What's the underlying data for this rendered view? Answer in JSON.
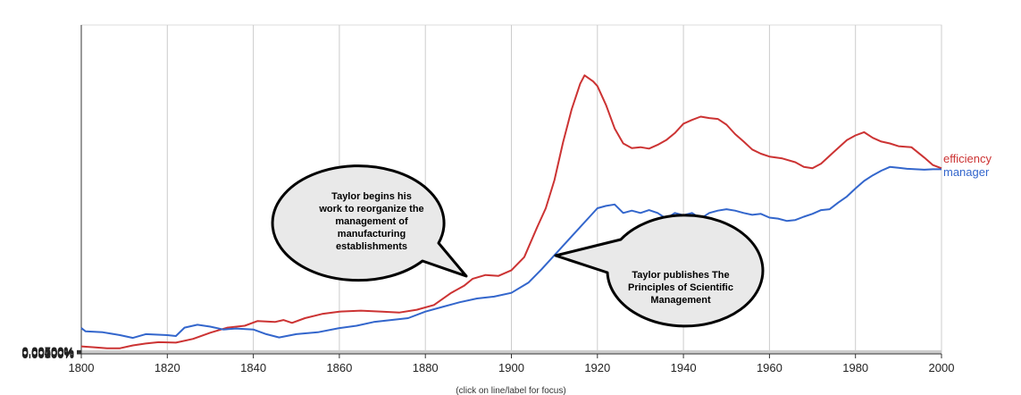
{
  "chart_data": {
    "type": "line",
    "title": "",
    "xlabel": "",
    "ylabel": "",
    "xlim": [
      1800,
      2000
    ],
    "ylim": [
      0,
      0.007
    ],
    "grid": true,
    "legend": "right-end labels",
    "x_ticks": [
      "1800",
      "1820",
      "1840",
      "1860",
      "1880",
      "1900",
      "1920",
      "1940",
      "1960",
      "1980",
      "2000"
    ],
    "y_ticks": [
      "0.00000%",
      "0.00100%",
      "0.00200%",
      "0.00300%",
      "0.00400%",
      "0.00500%",
      "0.00600%",
      "0.00700%"
    ],
    "series": [
      {
        "name": "efficiency",
        "color": "#cc3333",
        "points": [
          [
            1800,
            0.00016
          ],
          [
            1803,
            0.00014
          ],
          [
            1806,
            0.00012
          ],
          [
            1809,
            0.00012
          ],
          [
            1812,
            0.00018
          ],
          [
            1815,
            0.00022
          ],
          [
            1818,
            0.00025
          ],
          [
            1822,
            0.00024
          ],
          [
            1826,
            0.00032
          ],
          [
            1830,
            0.00045
          ],
          [
            1834,
            0.00056
          ],
          [
            1838,
            0.0006
          ],
          [
            1841,
            0.0007
          ],
          [
            1845,
            0.00068
          ],
          [
            1847,
            0.00072
          ],
          [
            1849,
            0.00066
          ],
          [
            1852,
            0.00076
          ],
          [
            1856,
            0.00085
          ],
          [
            1860,
            0.0009
          ],
          [
            1865,
            0.00092
          ],
          [
            1870,
            0.0009
          ],
          [
            1874,
            0.00088
          ],
          [
            1878,
            0.00094
          ],
          [
            1882,
            0.00104
          ],
          [
            1886,
            0.0013
          ],
          [
            1889,
            0.00145
          ],
          [
            1891,
            0.0016
          ],
          [
            1894,
            0.00168
          ],
          [
            1897,
            0.00166
          ],
          [
            1900,
            0.00178
          ],
          [
            1903,
            0.00206
          ],
          [
            1906,
            0.0027
          ],
          [
            1908,
            0.0031
          ],
          [
            1910,
            0.0037
          ],
          [
            1912,
            0.0045
          ],
          [
            1914,
            0.0052
          ],
          [
            1916,
            0.00575
          ],
          [
            1917,
            0.00593
          ],
          [
            1919,
            0.0058
          ],
          [
            1920,
            0.0057
          ],
          [
            1922,
            0.0053
          ],
          [
            1924,
            0.0048
          ],
          [
            1926,
            0.00448
          ],
          [
            1928,
            0.00438
          ],
          [
            1930,
            0.0044
          ],
          [
            1932,
            0.00437
          ],
          [
            1934,
            0.00445
          ],
          [
            1936,
            0.00455
          ],
          [
            1938,
            0.0047
          ],
          [
            1940,
            0.0049
          ],
          [
            1942,
            0.00498
          ],
          [
            1944,
            0.00505
          ],
          [
            1946,
            0.00502
          ],
          [
            1948,
            0.005
          ],
          [
            1950,
            0.00488
          ],
          [
            1952,
            0.00468
          ],
          [
            1954,
            0.00452
          ],
          [
            1956,
            0.00435
          ],
          [
            1958,
            0.00426
          ],
          [
            1960,
            0.0042
          ],
          [
            1963,
            0.00416
          ],
          [
            1966,
            0.00408
          ],
          [
            1968,
            0.00398
          ],
          [
            1970,
            0.00395
          ],
          [
            1972,
            0.00405
          ],
          [
            1975,
            0.0043
          ],
          [
            1978,
            0.00455
          ],
          [
            1980,
            0.00465
          ],
          [
            1982,
            0.00472
          ],
          [
            1984,
            0.0046
          ],
          [
            1986,
            0.00452
          ],
          [
            1988,
            0.00448
          ],
          [
            1990,
            0.00442
          ],
          [
            1993,
            0.0044
          ],
          [
            1996,
            0.00418
          ],
          [
            1998,
            0.00402
          ],
          [
            2000,
            0.00395
          ]
        ]
      },
      {
        "name": "manager",
        "color": "#3366cc",
        "points": [
          [
            1800,
            0.00055
          ],
          [
            1801,
            0.00048
          ],
          [
            1805,
            0.00046
          ],
          [
            1809,
            0.0004
          ],
          [
            1812,
            0.00034
          ],
          [
            1815,
            0.00042
          ],
          [
            1820,
            0.0004
          ],
          [
            1822,
            0.00038
          ],
          [
            1824,
            0.00056
          ],
          [
            1827,
            0.00062
          ],
          [
            1830,
            0.00058
          ],
          [
            1833,
            0.00052
          ],
          [
            1836,
            0.00054
          ],
          [
            1840,
            0.00052
          ],
          [
            1843,
            0.00042
          ],
          [
            1846,
            0.00035
          ],
          [
            1850,
            0.00042
          ],
          [
            1855,
            0.00046
          ],
          [
            1860,
            0.00055
          ],
          [
            1864,
            0.0006
          ],
          [
            1868,
            0.00068
          ],
          [
            1872,
            0.00072
          ],
          [
            1876,
            0.00076
          ],
          [
            1880,
            0.0009
          ],
          [
            1884,
            0.001
          ],
          [
            1888,
            0.0011
          ],
          [
            1892,
            0.00118
          ],
          [
            1896,
            0.00122
          ],
          [
            1900,
            0.0013
          ],
          [
            1904,
            0.00152
          ],
          [
            1907,
            0.0018
          ],
          [
            1910,
            0.0021
          ],
          [
            1913,
            0.0024
          ],
          [
            1916,
            0.0027
          ],
          [
            1918,
            0.0029
          ],
          [
            1920,
            0.0031
          ],
          [
            1922,
            0.00315
          ],
          [
            1924,
            0.00318
          ],
          [
            1926,
            0.003
          ],
          [
            1928,
            0.00305
          ],
          [
            1930,
            0.003
          ],
          [
            1932,
            0.00306
          ],
          [
            1934,
            0.003
          ],
          [
            1936,
            0.00288
          ],
          [
            1938,
            0.003
          ],
          [
            1940,
            0.00295
          ],
          [
            1942,
            0.003
          ],
          [
            1944,
            0.00288
          ],
          [
            1946,
            0.003
          ],
          [
            1948,
            0.00305
          ],
          [
            1950,
            0.00308
          ],
          [
            1952,
            0.00305
          ],
          [
            1954,
            0.003
          ],
          [
            1956,
            0.00296
          ],
          [
            1958,
            0.00298
          ],
          [
            1960,
            0.0029
          ],
          [
            1962,
            0.00288
          ],
          [
            1964,
            0.00283
          ],
          [
            1966,
            0.00285
          ],
          [
            1968,
            0.00292
          ],
          [
            1970,
            0.00298
          ],
          [
            1972,
            0.00306
          ],
          [
            1974,
            0.00308
          ],
          [
            1976,
            0.00322
          ],
          [
            1978,
            0.00335
          ],
          [
            1980,
            0.00352
          ],
          [
            1982,
            0.00368
          ],
          [
            1984,
            0.0038
          ],
          [
            1986,
            0.0039
          ],
          [
            1988,
            0.00398
          ],
          [
            1990,
            0.00396
          ],
          [
            1992,
            0.00394
          ],
          [
            1994,
            0.00393
          ],
          [
            1996,
            0.00392
          ],
          [
            1998,
            0.00393
          ],
          [
            2000,
            0.00393
          ]
        ]
      }
    ],
    "annotations": [
      {
        "name": "callout-taylor-begins",
        "lines": [
          "Taylor begins his",
          "work to reorganize the",
          "management of",
          "manufacturing",
          "establishments"
        ]
      },
      {
        "name": "callout-taylor-publishes",
        "lines": [
          "Taylor publishes The",
          "Principles of Scientific",
          "Management"
        ]
      }
    ],
    "footer_note": "(click on line/label for focus)"
  }
}
